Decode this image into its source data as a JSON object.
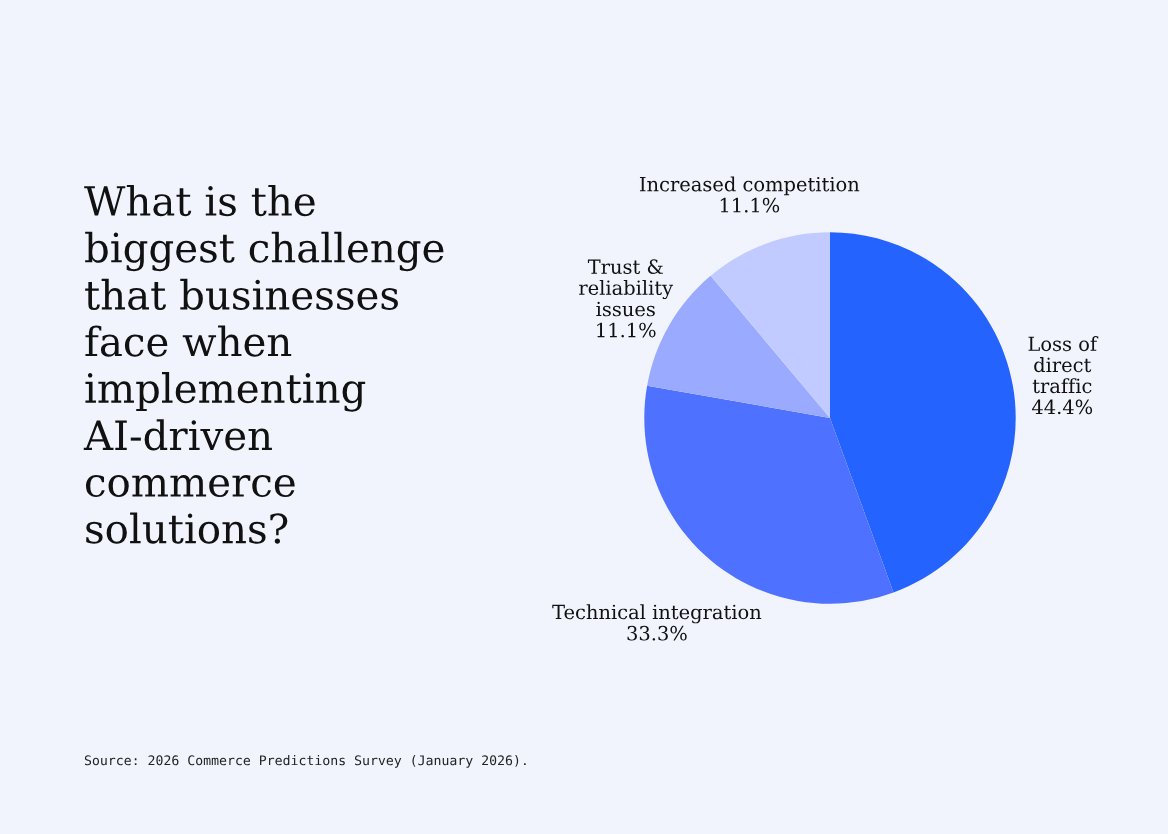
{
  "chart_data": {
    "type": "pie",
    "title": "What is the\nbiggest challenge\nthat businesses\nface when\nimplementing\nAI-driven\ncommerce\nsolutions?",
    "categories": [
      "Loss of\ndirect\ntraffic",
      "Technical integration",
      "Trust &\nreliability\nissues",
      "Increased competition"
    ],
    "values": [
      44.4,
      33.3,
      11.1,
      11.1
    ],
    "value_labels": [
      "44.4%",
      "33.3%",
      "11.1%",
      "11.1%"
    ],
    "colors": [
      "#2563ff",
      "#4e72ff",
      "#9aabff",
      "#c1cbff"
    ],
    "annotations": [
      "Source: 2026 Commerce Predictions Survey (January 2026)."
    ]
  }
}
